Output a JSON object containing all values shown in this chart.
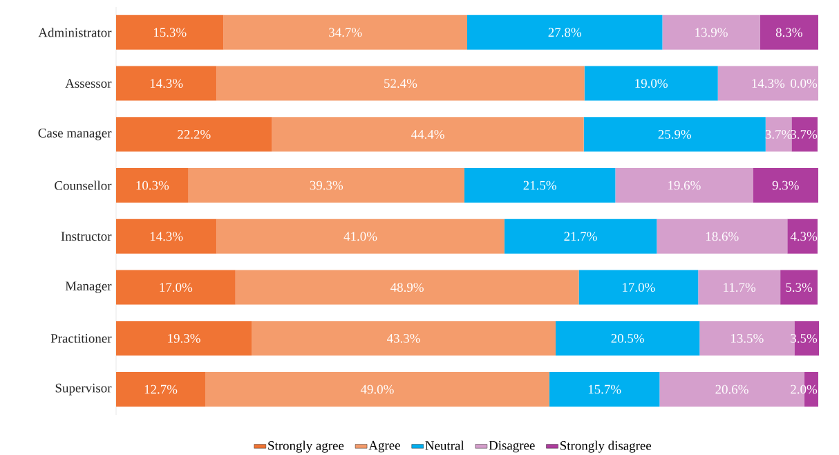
{
  "chart_data": {
    "type": "bar",
    "orientation": "horizontal",
    "stacked": true,
    "legend": "bottom",
    "tick_labels": "y",
    "categories": [
      "Administrator",
      "Assessor",
      "Case manager",
      "Counsellor",
      "Instructor",
      "Manager",
      "Practitioner",
      "Supervisor"
    ],
    "series": [
      {
        "name": "Strongly agree",
        "color": "#f07434",
        "values": [
          15.3,
          14.3,
          22.2,
          10.3,
          14.3,
          17.0,
          19.3,
          12.7
        ],
        "value_labels": [
          "15.3%",
          "14.3%",
          "22.2%",
          "10.3%",
          "14.3%",
          "17.0%",
          "19.3%",
          "12.7%"
        ]
      },
      {
        "name": "Agree",
        "color": "#f49c6c",
        "values": [
          34.7,
          52.4,
          44.4,
          39.3,
          41.0,
          48.9,
          43.3,
          49.0
        ],
        "value_labels": [
          "34.7%",
          "52.4%",
          "44.4%",
          "39.3%",
          "41.0%",
          "48.9%",
          "43.3%",
          "49.0%"
        ]
      },
      {
        "name": "Neutral",
        "color": "#00b0f0",
        "values": [
          27.8,
          19.0,
          25.9,
          21.5,
          21.7,
          17.0,
          20.5,
          15.7
        ],
        "value_labels": [
          "27.8%",
          "19.0%",
          "25.9%",
          "21.5%",
          "21.7%",
          "17.0%",
          "20.5%",
          "15.7%"
        ]
      },
      {
        "name": "Disagree",
        "color": "#d59fcc",
        "values": [
          13.9,
          14.3,
          3.7,
          19.6,
          18.6,
          11.7,
          13.5,
          20.6
        ],
        "value_labels": [
          "13.9%",
          "14.3%",
          "3.7%",
          "19.6%",
          "18.6%",
          "11.7%",
          "13.5%",
          "20.6%"
        ]
      },
      {
        "name": "Strongly disagree",
        "color": "#ae3d9e",
        "values": [
          8.3,
          0.0,
          3.7,
          9.3,
          4.3,
          5.3,
          3.5,
          2.0
        ],
        "value_labels": [
          "8.3%",
          "0.0%",
          "3.7%",
          "9.3%",
          "4.3%",
          "5.3%",
          "3.5%",
          "2.0%"
        ]
      }
    ]
  }
}
